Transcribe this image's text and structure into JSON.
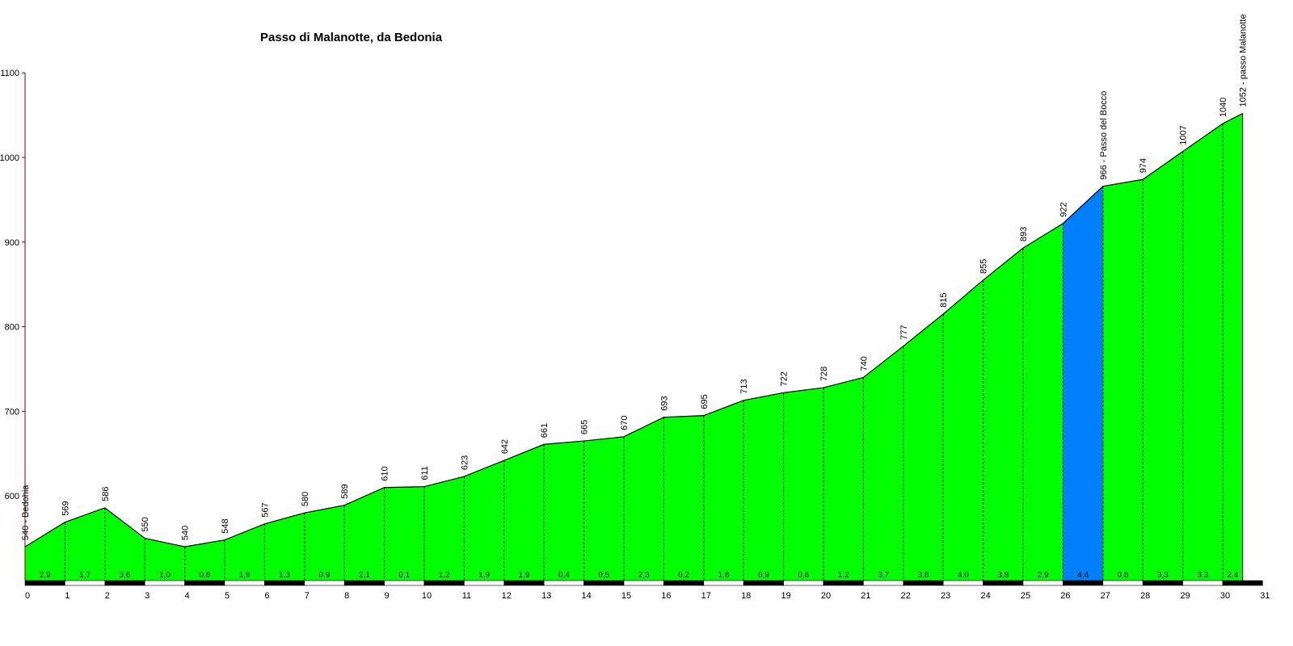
{
  "chart_data": {
    "type": "area",
    "title": "Passo di Malanotte, da Bedonia",
    "xlabel": "",
    "ylabel": "",
    "xlim": [
      0,
      31
    ],
    "ylim": [
      500,
      1100
    ],
    "x_ticks": [
      "0",
      "1",
      "2",
      "3",
      "4",
      "5",
      "6",
      "7",
      "8",
      "9",
      "10",
      "11",
      "12",
      "13",
      "14",
      "15",
      "16",
      "17",
      "18",
      "19",
      "20",
      "21",
      "22",
      "23",
      "24",
      "25",
      "26",
      "27",
      "28",
      "29",
      "30",
      "31"
    ],
    "y_ticks": [
      "600",
      "700",
      "800",
      "900",
      "1000",
      "1100"
    ],
    "x": [
      0,
      1,
      2,
      3,
      4,
      5,
      6,
      7,
      8,
      9,
      10,
      11,
      12,
      13,
      14,
      15,
      16,
      17,
      18,
      19,
      20,
      21,
      22,
      23,
      24,
      25,
      26,
      27,
      28,
      29,
      30,
      30.5
    ],
    "elevation": [
      540,
      569,
      586,
      550,
      540,
      548,
      567,
      580,
      589,
      610,
      611,
      623,
      642,
      661,
      665,
      670,
      693,
      695,
      713,
      722,
      728,
      740,
      777,
      815,
      855,
      893,
      922,
      966,
      974,
      1007,
      1040,
      1052
    ],
    "point_labels": [
      "540 - Bedonia",
      "569",
      "586",
      "550",
      "540",
      "548",
      "567",
      "580",
      "589",
      "610",
      "611",
      "623",
      "642",
      "661",
      "665",
      "670",
      "693",
      "695",
      "713",
      "722",
      "728",
      "740",
      "777",
      "815",
      "855",
      "893",
      "922",
      "966 - Passo del Bocco",
      "974",
      "1007",
      "1040",
      "1052 - passo Malanotte"
    ],
    "gradients": [
      "2,9",
      "1,7",
      "3,6",
      "1,0",
      "0,8",
      "1,9",
      "1,3",
      "0,9",
      "2,1",
      "0,1",
      "1,2",
      "1,9",
      "1,9",
      "0,4",
      "0,5",
      "2,3",
      "0,2",
      "1,8",
      "0,9",
      "0,6",
      "1,2",
      "3,7",
      "3,8",
      "4,0",
      "3,8",
      "2,9",
      "4,4",
      "0,8",
      "3,3",
      "3,3",
      "2,4"
    ],
    "segment_colors": [
      "#00ff00",
      "#00ff00",
      "#00ff00",
      "#00ff00",
      "#00ff00",
      "#00ff00",
      "#00ff00",
      "#00ff00",
      "#00ff00",
      "#00ff00",
      "#00ff00",
      "#00ff00",
      "#00ff00",
      "#00ff00",
      "#00ff00",
      "#00ff00",
      "#00ff00",
      "#00ff00",
      "#00ff00",
      "#00ff00",
      "#00ff00",
      "#00ff00",
      "#00ff00",
      "#00ff00",
      "#00ff00",
      "#00ff00",
      "#0080ff",
      "#00ff00",
      "#00ff00",
      "#00ff00",
      "#00ff00"
    ],
    "grid": false,
    "legend": "none"
  },
  "colors": {
    "axis_y": "#800000",
    "axis_x": "#000000",
    "profile_line": "#000000"
  }
}
